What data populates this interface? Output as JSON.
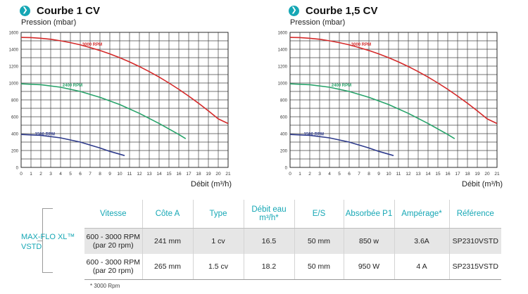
{
  "chart_data": [
    {
      "type": "line",
      "title": "Courbe 1 CV",
      "ylabel": "Pression (mbar)",
      "xlabel": "Débit (m³/h)",
      "xlim": [
        0,
        21
      ],
      "ylim": [
        0,
        1600
      ],
      "x_ticks": [
        0,
        1,
        2,
        3,
        4,
        5,
        6,
        7,
        8,
        9,
        10,
        11,
        12,
        13,
        14,
        15,
        16,
        17,
        18,
        19,
        20,
        21
      ],
      "y_ticks": [
        0,
        200,
        400,
        600,
        800,
        1000,
        1200,
        1400,
        1600
      ],
      "grid": true,
      "series": [
        {
          "name": "3000 RPM",
          "color": "#d42a2a",
          "x": [
            0,
            1,
            2,
            3,
            4,
            5,
            6,
            7,
            8,
            9,
            10,
            11,
            12,
            13,
            14,
            15,
            16,
            17,
            18,
            19,
            20,
            21
          ],
          "y": [
            1540,
            1538,
            1530,
            1518,
            1500,
            1478,
            1452,
            1420,
            1385,
            1345,
            1300,
            1250,
            1195,
            1135,
            1070,
            1000,
            925,
            845,
            760,
            670,
            575,
            520
          ]
        },
        {
          "name": "2400 RPM",
          "color": "#27a36a",
          "x": [
            0,
            2,
            4,
            6,
            8,
            10,
            12,
            14,
            16,
            16.7
          ],
          "y": [
            990,
            980,
            950,
            900,
            830,
            745,
            640,
            520,
            390,
            340
          ]
        },
        {
          "name": "1500 RPM",
          "color": "#2e3b8c",
          "x": [
            0,
            2,
            4,
            6,
            8,
            9,
            10.5
          ],
          "y": [
            390,
            380,
            350,
            300,
            230,
            190,
            140
          ]
        }
      ]
    },
    {
      "type": "line",
      "title": "Courbe 1,5 CV",
      "ylabel": "Pression (mbar)",
      "xlabel": "Débit (m³/h)",
      "xlim": [
        0,
        21
      ],
      "ylim": [
        0,
        1600
      ],
      "x_ticks": [
        0,
        1,
        2,
        3,
        4,
        5,
        6,
        7,
        8,
        9,
        10,
        11,
        12,
        13,
        14,
        15,
        16,
        17,
        18,
        19,
        20,
        21
      ],
      "y_ticks": [
        0,
        200,
        400,
        600,
        800,
        1000,
        1200,
        1400,
        1600
      ],
      "grid": true,
      "series": [
        {
          "name": "3000 RPM",
          "color": "#d42a2a",
          "x": [
            0,
            1,
            2,
            3,
            4,
            5,
            6,
            7,
            8,
            9,
            10,
            11,
            12,
            13,
            14,
            15,
            16,
            17,
            18,
            19,
            20,
            21
          ],
          "y": [
            1540,
            1538,
            1530,
            1518,
            1500,
            1478,
            1452,
            1420,
            1385,
            1345,
            1300,
            1250,
            1195,
            1135,
            1070,
            1000,
            925,
            845,
            760,
            670,
            575,
            520
          ]
        },
        {
          "name": "2400 RPM",
          "color": "#27a36a",
          "x": [
            0,
            2,
            4,
            6,
            8,
            10,
            12,
            14,
            16,
            16.7
          ],
          "y": [
            990,
            980,
            950,
            900,
            830,
            745,
            640,
            520,
            390,
            340
          ]
        },
        {
          "name": "1500 RPM",
          "color": "#2e3b8c",
          "x": [
            0,
            2,
            4,
            6,
            8,
            9,
            10.5
          ],
          "y": [
            390,
            380,
            350,
            300,
            230,
            190,
            140
          ]
        }
      ]
    }
  ],
  "charts": {
    "icon": "chevron-right-icon",
    "accent": "#16a7b5",
    "curve_labels": [
      {
        "text": "3000 RPM",
        "at_x": 6.2,
        "at_y": 1460
      },
      {
        "text": "2400 RPM",
        "at_x": 4.2,
        "at_y": 975
      },
      {
        "text": "1500 RPM",
        "at_x": 1.4,
        "at_y": 395
      }
    ]
  },
  "table": {
    "product_name": "MAX-FLO XL™ VSTD",
    "headers": [
      "Vitesse",
      "Côte A",
      "Type",
      "Débit eau m³/h*",
      "E/S",
      "Absorbée P1",
      "Ampérage*",
      "Référence"
    ],
    "rows": [
      [
        "600 - 3000 RPM (par 20 rpm)",
        "241 mm",
        "1 cv",
        "16.5",
        "50 mm",
        "850 w",
        "3.6A",
        "SP2310VSTD"
      ],
      [
        "600 - 3000 RPM (par 20 rpm)",
        "265 mm",
        "1.5 cv",
        "18.2",
        "50 mm",
        "950 W",
        "4 A",
        "SP2315VSTD"
      ]
    ],
    "footnote": "* 3000 Rpm"
  }
}
